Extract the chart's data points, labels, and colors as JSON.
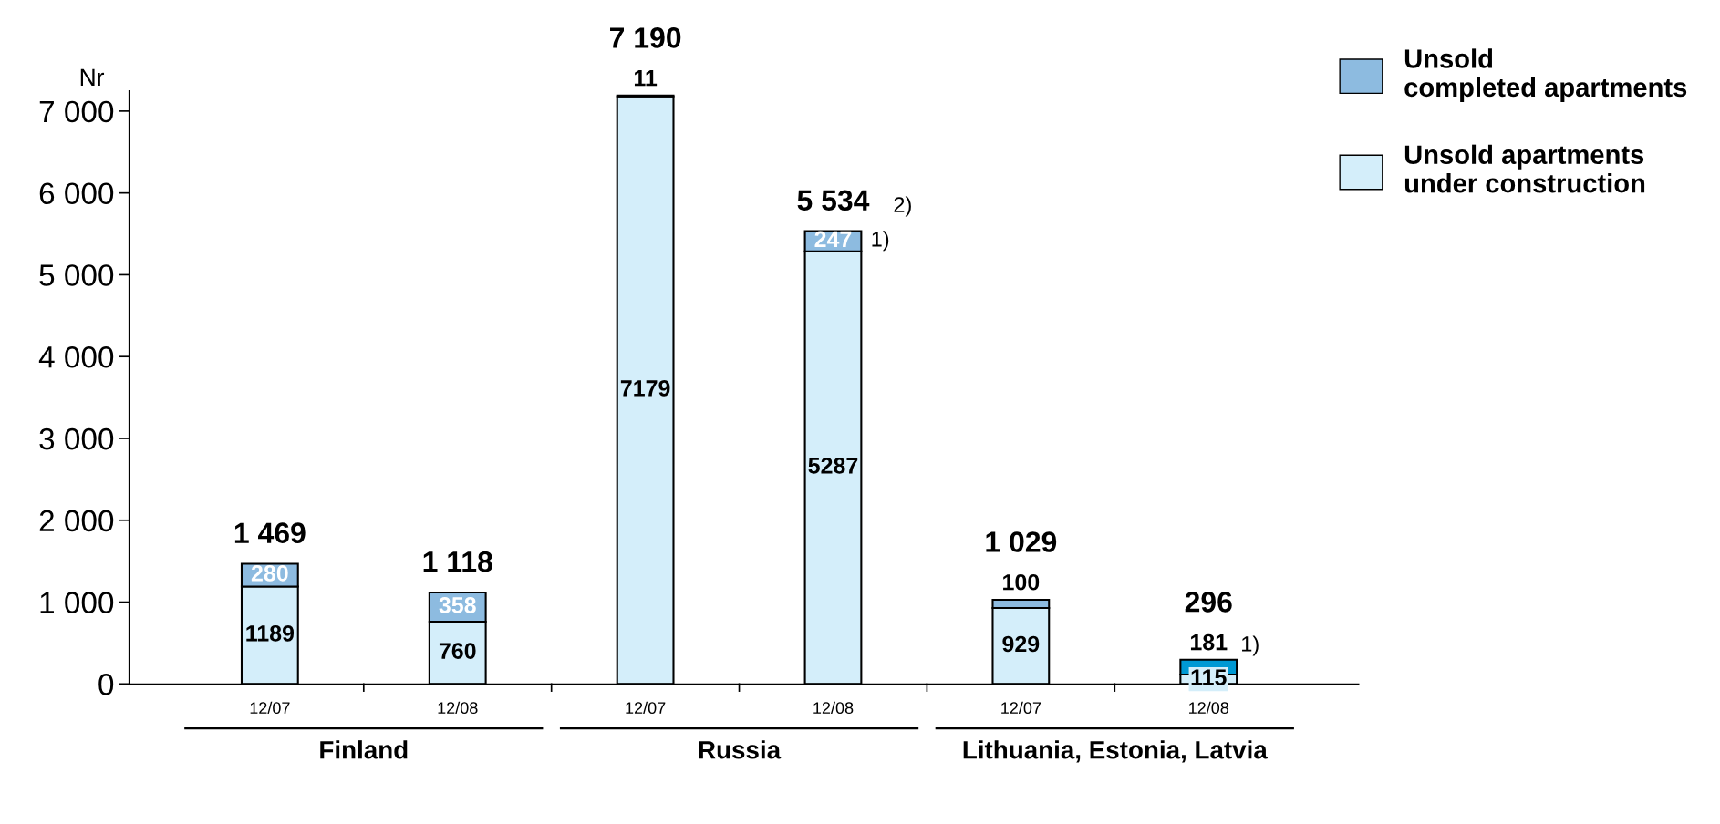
{
  "chart_data": {
    "type": "bar",
    "stacked": true,
    "ylabel": "Nr",
    "categories": [
      "12/07",
      "12/08",
      "12/07",
      "12/08",
      "12/07",
      "12/08"
    ],
    "series": [
      {
        "name": "Unsold apartments under construction",
        "color": "#d4eefa",
        "values": [
          1189,
          760,
          7179,
          5287,
          929,
          115
        ]
      },
      {
        "name": "Unsold completed apartments",
        "color": "#8dbbe0",
        "colors": [
          "#8dbbe0",
          "#8dbbe0",
          "#8dbbe0",
          "#8dbbe0",
          "#8dbbe0",
          "#0099d4"
        ],
        "values": [
          280,
          358,
          11,
          247,
          100,
          181
        ]
      }
    ],
    "totals": [
      "1 469",
      "1 118",
      "7 190",
      "5 534",
      "1 029",
      "296"
    ],
    "data_labels": true,
    "ylim": [
      0,
      7250
    ],
    "yticks": [
      0,
      {
        "value": 1000,
        "label": "1 000"
      },
      {
        "value": 2000,
        "label": "2 000"
      },
      {
        "value": 3000,
        "label": "3 000"
      },
      {
        "value": 4000,
        "label": "4 000"
      },
      {
        "value": 5000,
        "label": "5 000"
      },
      {
        "value": 6000,
        "label": "6 000"
      },
      {
        "value": 7000,
        "label": "7 000"
      }
    ],
    "annotations": [
      "Finland",
      "Russia",
      "Lithuania, Estonia, Latvia",
      "2)",
      "1)",
      "1)"
    ],
    "legend": "top right",
    "grid": false
  }
}
